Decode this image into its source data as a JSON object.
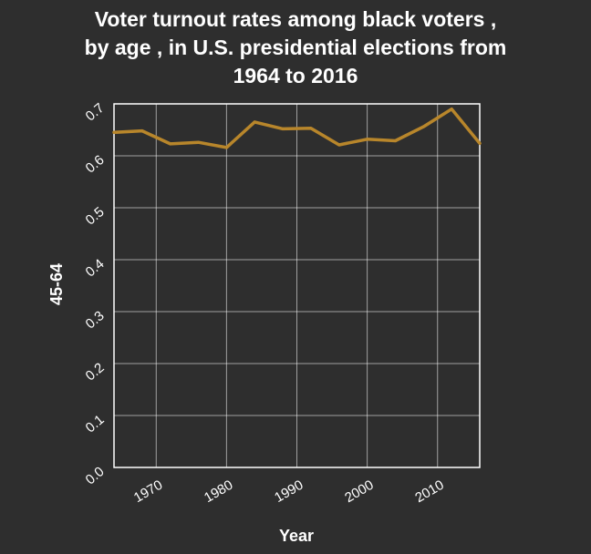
{
  "chart_data": {
    "type": "line",
    "title_lines": [
      "Voter turnout rates among black voters ,",
      "by age , in U.S. presidential elections from",
      "1964 to 2016"
    ],
    "xlabel": "Year",
    "ylabel": "45-64",
    "xlim": [
      1964,
      2016
    ],
    "ylim": [
      0.0,
      0.7
    ],
    "x_ticks": [
      1970,
      1980,
      1990,
      2000,
      2010
    ],
    "y_ticks": [
      0.0,
      0.1,
      0.2,
      0.3,
      0.4,
      0.5,
      0.6,
      0.7
    ],
    "x_tick_labels": [
      "1970",
      "1980",
      "1990",
      "2000",
      "2010"
    ],
    "y_tick_labels": [
      "0.0",
      "0.1",
      "0.2",
      "0.3",
      "0.4",
      "0.5",
      "0.6",
      "0.7"
    ],
    "grid": true,
    "line_color": "#b8862b",
    "series": [
      {
        "x": [
          1964,
          1968,
          1972,
          1976,
          1980,
          1984,
          1988,
          1992,
          1996,
          2000,
          2004,
          2008,
          2012,
          2016
        ],
        "y": [
          0.645,
          0.648,
          0.623,
          0.626,
          0.616,
          0.665,
          0.652,
          0.653,
          0.621,
          0.632,
          0.629,
          0.656,
          0.69,
          0.624
        ]
      }
    ]
  }
}
